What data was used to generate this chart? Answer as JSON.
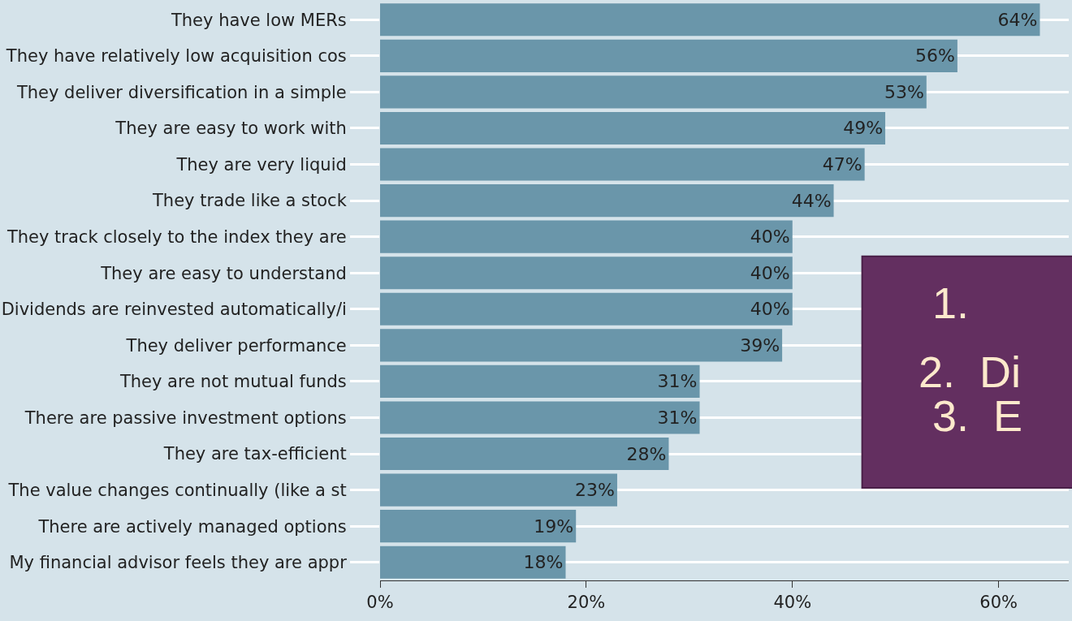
{
  "chart_data": {
    "type": "bar",
    "orientation": "horizontal",
    "categories": [
      "They have low MERs",
      "They have relatively low acquisition cos",
      "They deliver diversification in a simple",
      "They are easy to work with",
      "They are very liquid",
      "They trade like a stock",
      "They track closely to the index they are",
      "They are easy to understand",
      "Dividends are reinvested automatically/i",
      "They deliver performance",
      "They are not mutual funds",
      "There are passive investment options",
      "They are tax-efficient",
      "The value changes continually (like a st",
      "There are actively managed options",
      "My financial advisor feels they are appr"
    ],
    "values": [
      64,
      56,
      53,
      49,
      47,
      44,
      40,
      40,
      40,
      39,
      31,
      31,
      28,
      23,
      19,
      18
    ],
    "value_labels": [
      "64%",
      "56%",
      "53%",
      "49%",
      "47%",
      "44%",
      "40%",
      "40%",
      "40%",
      "39%",
      "31%",
      "31%",
      "28%",
      "23%",
      "19%",
      "18%"
    ],
    "color": "#6a96aa",
    "xlim": [
      0,
      66.8
    ],
    "xticks": [
      {
        "value": 0,
        "label": "0%"
      },
      {
        "value": 20,
        "label": "20%"
      },
      {
        "value": 40,
        "label": "40%"
      },
      {
        "value": 60,
        "label": "60%"
      }
    ],
    "grid": "y",
    "annotations": [
      "1.",
      "2.  Di",
      "3.  E"
    ]
  }
}
